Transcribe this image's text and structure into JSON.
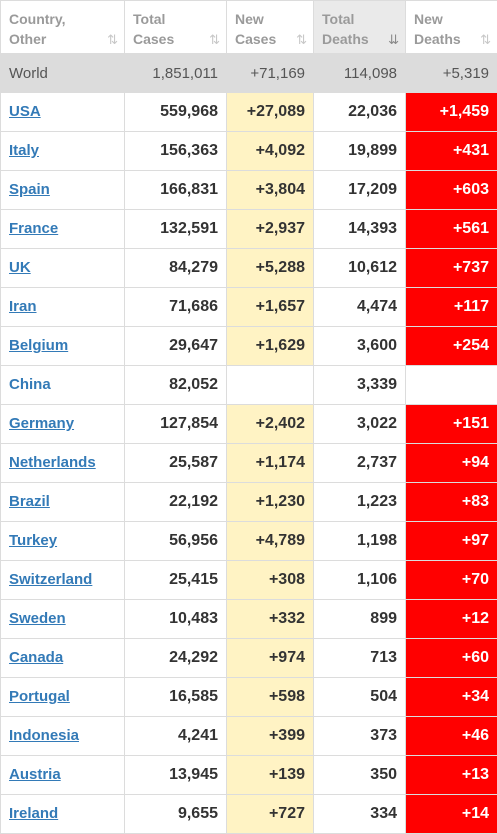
{
  "columns": [
    {
      "line1": "Country,",
      "line2": "Other"
    },
    {
      "line1": "Total",
      "line2": "Cases"
    },
    {
      "line1": "New",
      "line2": "Cases"
    },
    {
      "line1": "Total",
      "line2": "Deaths"
    },
    {
      "line1": "New",
      "line2": "Deaths"
    }
  ],
  "sort_icon": "⇅",
  "sort_icon_active": "⇊",
  "world": {
    "country": "World",
    "total_cases": "1,851,011",
    "new_cases": "+71,169",
    "total_deaths": "114,098",
    "new_deaths": "+5,319"
  },
  "rows": [
    {
      "country": "USA",
      "total_cases": "559,968",
      "new_cases": "+27,089",
      "total_deaths": "22,036",
      "new_deaths": "+1,459"
    },
    {
      "country": "Italy",
      "total_cases": "156,363",
      "new_cases": "+4,092",
      "total_deaths": "19,899",
      "new_deaths": "+431"
    },
    {
      "country": "Spain",
      "total_cases": "166,831",
      "new_cases": "+3,804",
      "total_deaths": "17,209",
      "new_deaths": "+603"
    },
    {
      "country": "France",
      "total_cases": "132,591",
      "new_cases": "+2,937",
      "total_deaths": "14,393",
      "new_deaths": "+561"
    },
    {
      "country": "UK",
      "total_cases": "84,279",
      "new_cases": "+5,288",
      "total_deaths": "10,612",
      "new_deaths": "+737"
    },
    {
      "country": "Iran",
      "total_cases": "71,686",
      "new_cases": "+1,657",
      "total_deaths": "4,474",
      "new_deaths": "+117"
    },
    {
      "country": "Belgium",
      "total_cases": "29,647",
      "new_cases": "+1,629",
      "total_deaths": "3,600",
      "new_deaths": "+254"
    },
    {
      "country": "China",
      "total_cases": "82,052",
      "new_cases": "",
      "total_deaths": "3,339",
      "new_deaths": ""
    },
    {
      "country": "Germany",
      "total_cases": "127,854",
      "new_cases": "+2,402",
      "total_deaths": "3,022",
      "new_deaths": "+151"
    },
    {
      "country": "Netherlands",
      "total_cases": "25,587",
      "new_cases": "+1,174",
      "total_deaths": "2,737",
      "new_deaths": "+94"
    },
    {
      "country": "Brazil",
      "total_cases": "22,192",
      "new_cases": "+1,230",
      "total_deaths": "1,223",
      "new_deaths": "+83"
    },
    {
      "country": "Turkey",
      "total_cases": "56,956",
      "new_cases": "+4,789",
      "total_deaths": "1,198",
      "new_deaths": "+97"
    },
    {
      "country": "Switzerland",
      "total_cases": "25,415",
      "new_cases": "+308",
      "total_deaths": "1,106",
      "new_deaths": "+70"
    },
    {
      "country": "Sweden",
      "total_cases": "10,483",
      "new_cases": "+332",
      "total_deaths": "899",
      "new_deaths": "+12"
    },
    {
      "country": "Canada",
      "total_cases": "24,292",
      "new_cases": "+974",
      "total_deaths": "713",
      "new_deaths": "+60"
    },
    {
      "country": "Portugal",
      "total_cases": "16,585",
      "new_cases": "+598",
      "total_deaths": "504",
      "new_deaths": "+34"
    },
    {
      "country": "Indonesia",
      "total_cases": "4,241",
      "new_cases": "+399",
      "total_deaths": "373",
      "new_deaths": "+46"
    },
    {
      "country": "Austria",
      "total_cases": "13,945",
      "new_cases": "+139",
      "total_deaths": "350",
      "new_deaths": "+13"
    },
    {
      "country": "Ireland",
      "total_cases": "9,655",
      "new_cases": "+727",
      "total_deaths": "334",
      "new_deaths": "+14"
    }
  ],
  "colors": {
    "new_cases_bg": "#fff3c4",
    "new_deaths_bg": "#ff0000",
    "link": "#337ab7",
    "world_bg": "#dcdcdc"
  }
}
